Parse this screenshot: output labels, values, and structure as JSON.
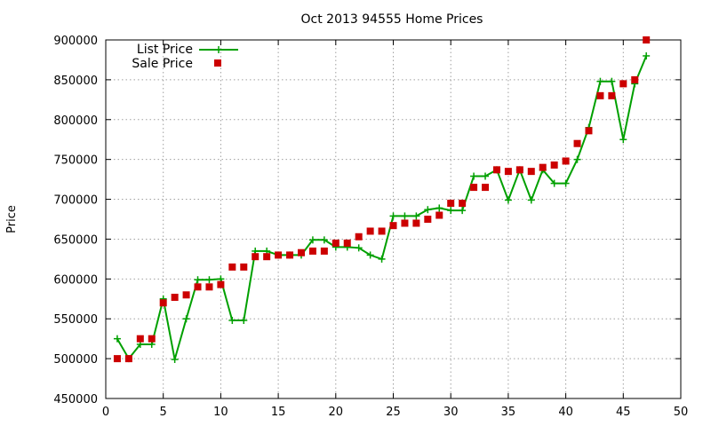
{
  "chart_data": {
    "type": "line",
    "title": "Oct 2013 94555 Home Prices",
    "xlabel": "",
    "ylabel": "Price",
    "xlim": [
      0,
      50
    ],
    "ylim": [
      450000,
      900000
    ],
    "xticks": [
      0,
      5,
      10,
      15,
      20,
      25,
      30,
      35,
      40,
      45,
      50
    ],
    "yticks": [
      450000,
      500000,
      550000,
      600000,
      650000,
      700000,
      750000,
      800000,
      850000,
      900000
    ],
    "grid": true,
    "legend_position": "top-left",
    "series": [
      {
        "name": "List Price",
        "style": "line+cross",
        "color": "#00a000",
        "x": [
          1,
          2,
          3,
          4,
          5,
          6,
          7,
          8,
          9,
          10,
          11,
          12,
          13,
          14,
          15,
          16,
          17,
          18,
          19,
          20,
          21,
          22,
          23,
          24,
          25,
          26,
          27,
          28,
          29,
          30,
          31,
          32,
          33,
          34,
          35,
          36,
          37,
          38,
          39,
          40,
          41,
          42,
          43,
          44,
          45,
          46,
          47
        ],
        "y": [
          525000,
          500000,
          518000,
          518000,
          575000,
          499000,
          550000,
          599000,
          599000,
          600000,
          548000,
          548000,
          635000,
          635000,
          630000,
          630000,
          630000,
          649000,
          649000,
          640000,
          640000,
          639000,
          630000,
          625000,
          679000,
          679000,
          679000,
          687000,
          689000,
          686000,
          686000,
          729000,
          729000,
          737000,
          699000,
          737000,
          699000,
          737000,
          720000,
          720000,
          750000,
          790000,
          848000,
          848000,
          775000,
          845000,
          880000
        ]
      },
      {
        "name": "Sale Price",
        "style": "points",
        "color": "#cc0000",
        "x": [
          1,
          2,
          3,
          4,
          5,
          6,
          7,
          8,
          9,
          10,
          11,
          12,
          13,
          14,
          15,
          16,
          17,
          18,
          19,
          20,
          21,
          22,
          23,
          24,
          25,
          26,
          27,
          28,
          29,
          30,
          31,
          32,
          33,
          34,
          35,
          36,
          37,
          38,
          39,
          40,
          41,
          42,
          43,
          44,
          45,
          46,
          47
        ],
        "y": [
          500000,
          500000,
          525000,
          525000,
          570000,
          577000,
          580000,
          590000,
          590000,
          593000,
          615000,
          615000,
          628000,
          628000,
          630000,
          630000,
          633000,
          635000,
          635000,
          645000,
          645000,
          653000,
          660000,
          660000,
          667000,
          670000,
          670000,
          675000,
          680000,
          695000,
          695000,
          715000,
          715000,
          737000,
          735000,
          737000,
          735000,
          740000,
          743000,
          748000,
          770000,
          786000,
          830000,
          830000,
          845000,
          850000,
          900000
        ]
      }
    ]
  }
}
